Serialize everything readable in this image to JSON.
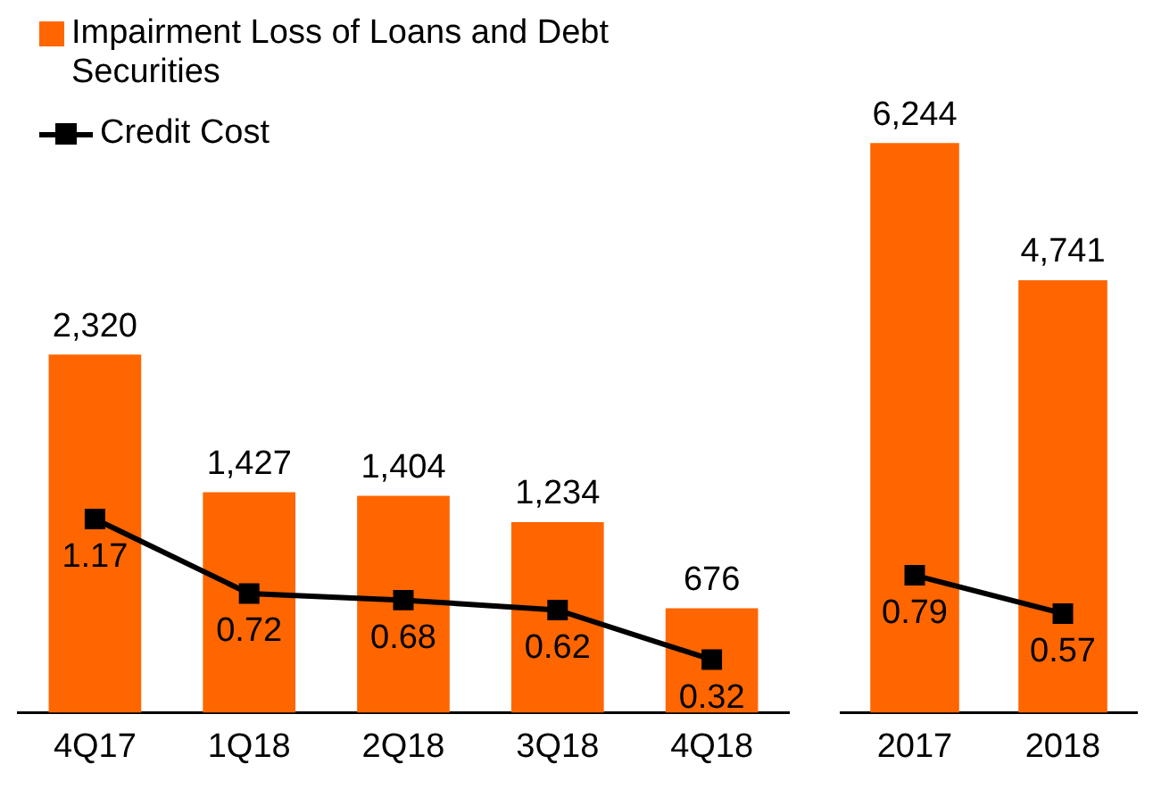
{
  "chart_data": [
    {
      "type": "bar",
      "categories": [
        "4Q17",
        "1Q18",
        "2Q18",
        "3Q18",
        "4Q18"
      ],
      "series": [
        {
          "name": "Impairment Loss of Loans and Debt Securities",
          "color": "#ff6600",
          "values": [
            2320,
            1427,
            1404,
            1234,
            676
          ],
          "value_labels": [
            "2,320",
            "1,427",
            "1,404",
            "1,234",
            "676"
          ]
        },
        {
          "name": "Credit Cost",
          "type": "line",
          "axis": "y2",
          "color": "#000000",
          "values": [
            1.17,
            0.72,
            0.68,
            0.62,
            0.32
          ],
          "value_labels": [
            "1.17",
            "0.72",
            "0.68",
            "0.62",
            "0.32"
          ]
        }
      ],
      "legend": "top left",
      "tick_labels": "x",
      "marker": "square"
    },
    {
      "type": "bar",
      "categories": [
        "2017",
        "2018"
      ],
      "series": [
        {
          "color": "#ff6600",
          "values": [
            6244,
            4741
          ],
          "value_labels": [
            "6,244",
            "4,741"
          ]
        },
        {
          "type": "line",
          "axis": "y2",
          "color": "#000000",
          "values": [
            0.79,
            0.57
          ],
          "value_labels": [
            "0.79",
            "0.57"
          ]
        }
      ],
      "tick_labels": "x",
      "marker": "square"
    }
  ]
}
